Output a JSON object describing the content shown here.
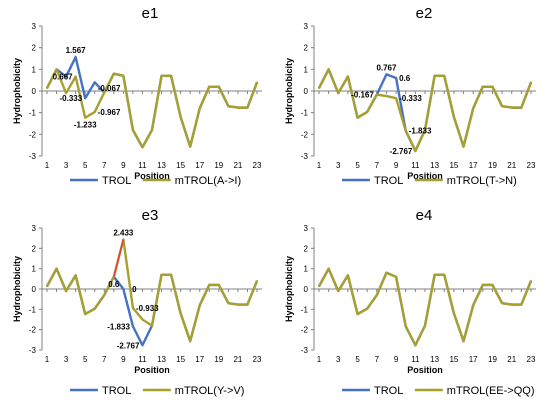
{
  "colors": {
    "trol": "#4472C4",
    "mtrol": "#A8A02E",
    "mutation_point": "#E04040",
    "axis": "#808080"
  },
  "chart_data": [
    {
      "title": "e1",
      "type": "line",
      "ylabel": "Hydrophobicity",
      "xlabel": "Position",
      "x": [
        1,
        2,
        3,
        4,
        5,
        6,
        7,
        8,
        9,
        10,
        11,
        12,
        13,
        14,
        15,
        16,
        17,
        18,
        19,
        20,
        21,
        22,
        23
      ],
      "xticks": [
        1,
        3,
        5,
        7,
        9,
        11,
        13,
        15,
        17,
        19,
        21,
        23
      ],
      "ylim": [
        -3,
        3
      ],
      "yticks": [
        -3,
        -2,
        -1,
        0,
        1,
        2,
        3
      ],
      "series": [
        {
          "name": "TROL",
          "role": "trol",
          "values": [
            0.13,
            1.0,
            0.667,
            1.567,
            -0.333,
            0.4,
            -0.067,
            0.8,
            0.7,
            -1.8,
            -2.6,
            -1.8,
            0.7,
            0.7,
            -1.2,
            -2.567,
            -0.8,
            0.2,
            0.2,
            -0.7,
            -0.767,
            -0.767,
            0.4
          ]
        },
        {
          "name": "mTROL(A->I)",
          "role": "mtrol",
          "values": [
            0.13,
            1.0,
            -0.1,
            0.667,
            -1.233,
            -0.967,
            -0.067,
            0.8,
            0.7,
            -1.8,
            -2.6,
            -1.8,
            0.7,
            0.7,
            -1.2,
            -2.567,
            -0.8,
            0.2,
            0.2,
            -0.7,
            -0.767,
            -0.767,
            0.4
          ]
        }
      ],
      "annotations": [
        {
          "text": "1.567",
          "x": 4,
          "y": 1.567,
          "pos": "above"
        },
        {
          "text": "0.667",
          "x": 4,
          "y": 0.667,
          "pos": "left"
        },
        {
          "text": "-0.333",
          "x": 5,
          "y": -0.333,
          "pos": "left"
        },
        {
          "text": "-0.067",
          "x": 6,
          "y": 0.15,
          "pos": "right"
        },
        {
          "text": "-0.967",
          "x": 6,
          "y": -0.967,
          "pos": "right"
        },
        {
          "text": "-1.233",
          "x": 5,
          "y": -1.233,
          "pos": "below"
        }
      ]
    },
    {
      "title": "e2",
      "type": "line",
      "ylabel": "Hydrophobicity",
      "xlabel": "Position",
      "x": [
        1,
        2,
        3,
        4,
        5,
        6,
        7,
        8,
        9,
        10,
        11,
        12,
        13,
        14,
        15,
        16,
        17,
        18,
        19,
        20,
        21,
        22,
        23
      ],
      "xticks": [
        1,
        3,
        5,
        7,
        9,
        11,
        13,
        15,
        17,
        19,
        21,
        23
      ],
      "ylim": [
        -3,
        3
      ],
      "yticks": [
        -3,
        -2,
        -1,
        0,
        1,
        2,
        3
      ],
      "series": [
        {
          "name": "TROL",
          "role": "trol",
          "values": [
            0.13,
            1.0,
            -0.1,
            0.667,
            -1.233,
            -0.967,
            -0.167,
            0.767,
            0.6,
            -1.833,
            -2.767,
            -1.8,
            0.7,
            0.7,
            -1.2,
            -2.567,
            -0.8,
            0.2,
            0.2,
            -0.7,
            -0.767,
            -0.767,
            0.4
          ]
        },
        {
          "name": "mTROL(T->N)",
          "role": "mtrol",
          "values": [
            0.13,
            1.0,
            -0.1,
            0.667,
            -1.233,
            -0.967,
            -0.167,
            -0.233,
            -0.333,
            -1.833,
            -2.767,
            -1.8,
            0.7,
            0.7,
            -1.2,
            -2.567,
            -0.8,
            0.2,
            0.2,
            -0.7,
            -0.767,
            -0.767,
            0.4
          ]
        }
      ],
      "annotations": [
        {
          "text": "0.767",
          "x": 8,
          "y": 0.767,
          "pos": "above"
        },
        {
          "text": "0.6",
          "x": 9,
          "y": 0.6,
          "pos": "right"
        },
        {
          "text": "-0.167",
          "x": 7,
          "y": -0.167,
          "pos": "left"
        },
        {
          "text": "-0.333",
          "x": 9,
          "y": -0.333,
          "pos": "right"
        },
        {
          "text": "-1.833",
          "x": 10,
          "y": -1.833,
          "pos": "right"
        },
        {
          "text": "-2.767",
          "x": 11,
          "y": -2.767,
          "pos": "left"
        }
      ]
    },
    {
      "title": "e3",
      "type": "line",
      "ylabel": "Hydrophobicity",
      "xlabel": "Position",
      "x": [
        1,
        2,
        3,
        4,
        5,
        6,
        7,
        8,
        9,
        10,
        11,
        12,
        13,
        14,
        15,
        16,
        17,
        18,
        19,
        20,
        21,
        22,
        23
      ],
      "xticks": [
        1,
        3,
        5,
        7,
        9,
        11,
        13,
        15,
        17,
        19,
        21,
        23
      ],
      "ylim": [
        -3,
        3
      ],
      "yticks": [
        -3,
        -2,
        -1,
        0,
        1,
        2,
        3
      ],
      "series": [
        {
          "name": "TROL",
          "role": "trol",
          "values": [
            0.13,
            1.0,
            -0.1,
            0.667,
            -1.233,
            -0.967,
            -0.3,
            0.6,
            0.0,
            -1.833,
            -2.767,
            -1.8,
            0.7,
            0.7,
            -1.2,
            -2.567,
            -0.8,
            0.2,
            0.2,
            -0.7,
            -0.767,
            -0.767,
            0.4
          ]
        },
        {
          "name": "mTROL(Y->V)",
          "role": "mtrol",
          "values": [
            0.13,
            1.0,
            -0.1,
            0.667,
            -1.233,
            -0.967,
            -0.3,
            0.6,
            2.433,
            -0.933,
            -1.5,
            -1.8,
            0.7,
            0.7,
            -1.2,
            -2.567,
            -0.8,
            0.2,
            0.2,
            -0.7,
            -0.767,
            -0.767,
            0.4
          ]
        }
      ],
      "annotations": [
        {
          "text": "2.433",
          "x": 9,
          "y": 2.433,
          "pos": "above"
        },
        {
          "text": "0.6",
          "x": 8,
          "y": 0.6,
          "pos": "below"
        },
        {
          "text": "0",
          "x": 9.6,
          "y": 0.0,
          "pos": "right"
        },
        {
          "text": "-0.933",
          "x": 10,
          "y": -0.933,
          "pos": "right"
        },
        {
          "text": "-1.833",
          "x": 10,
          "y": -1.833,
          "pos": "left"
        },
        {
          "text": "-2.767",
          "x": 11,
          "y": -2.767,
          "pos": "left"
        }
      ]
    },
    {
      "title": "e4",
      "type": "line",
      "ylabel": "Hydrophobicity",
      "xlabel": "Position",
      "x": [
        1,
        2,
        3,
        4,
        5,
        6,
        7,
        8,
        9,
        10,
        11,
        12,
        13,
        14,
        15,
        16,
        17,
        18,
        19,
        20,
        21,
        22,
        23
      ],
      "xticks": [
        1,
        3,
        5,
        7,
        9,
        11,
        13,
        15,
        17,
        19,
        21,
        23
      ],
      "ylim": [
        -3,
        3
      ],
      "yticks": [
        -3,
        -2,
        -1,
        0,
        1,
        2,
        3
      ],
      "series": [
        {
          "name": "TROL",
          "role": "trol",
          "values": [
            0.13,
            1.0,
            -0.1,
            0.667,
            -1.233,
            -0.967,
            -0.3,
            0.8,
            0.6,
            -1.833,
            -2.767,
            -1.8,
            0.7,
            0.7,
            -1.2,
            -2.567,
            -0.8,
            0.2,
            0.2,
            -0.7,
            -0.767,
            -0.767,
            0.4
          ]
        },
        {
          "name": "mTROL(EE->QQ)",
          "role": "mtrol",
          "values": [
            0.13,
            1.0,
            -0.1,
            0.667,
            -1.233,
            -0.967,
            -0.3,
            0.8,
            0.6,
            -1.833,
            -2.767,
            -1.8,
            0.7,
            0.7,
            -1.2,
            -2.567,
            -0.8,
            0.2,
            0.2,
            -0.7,
            -0.767,
            -0.767,
            0.4
          ]
        }
      ],
      "annotations": []
    }
  ]
}
